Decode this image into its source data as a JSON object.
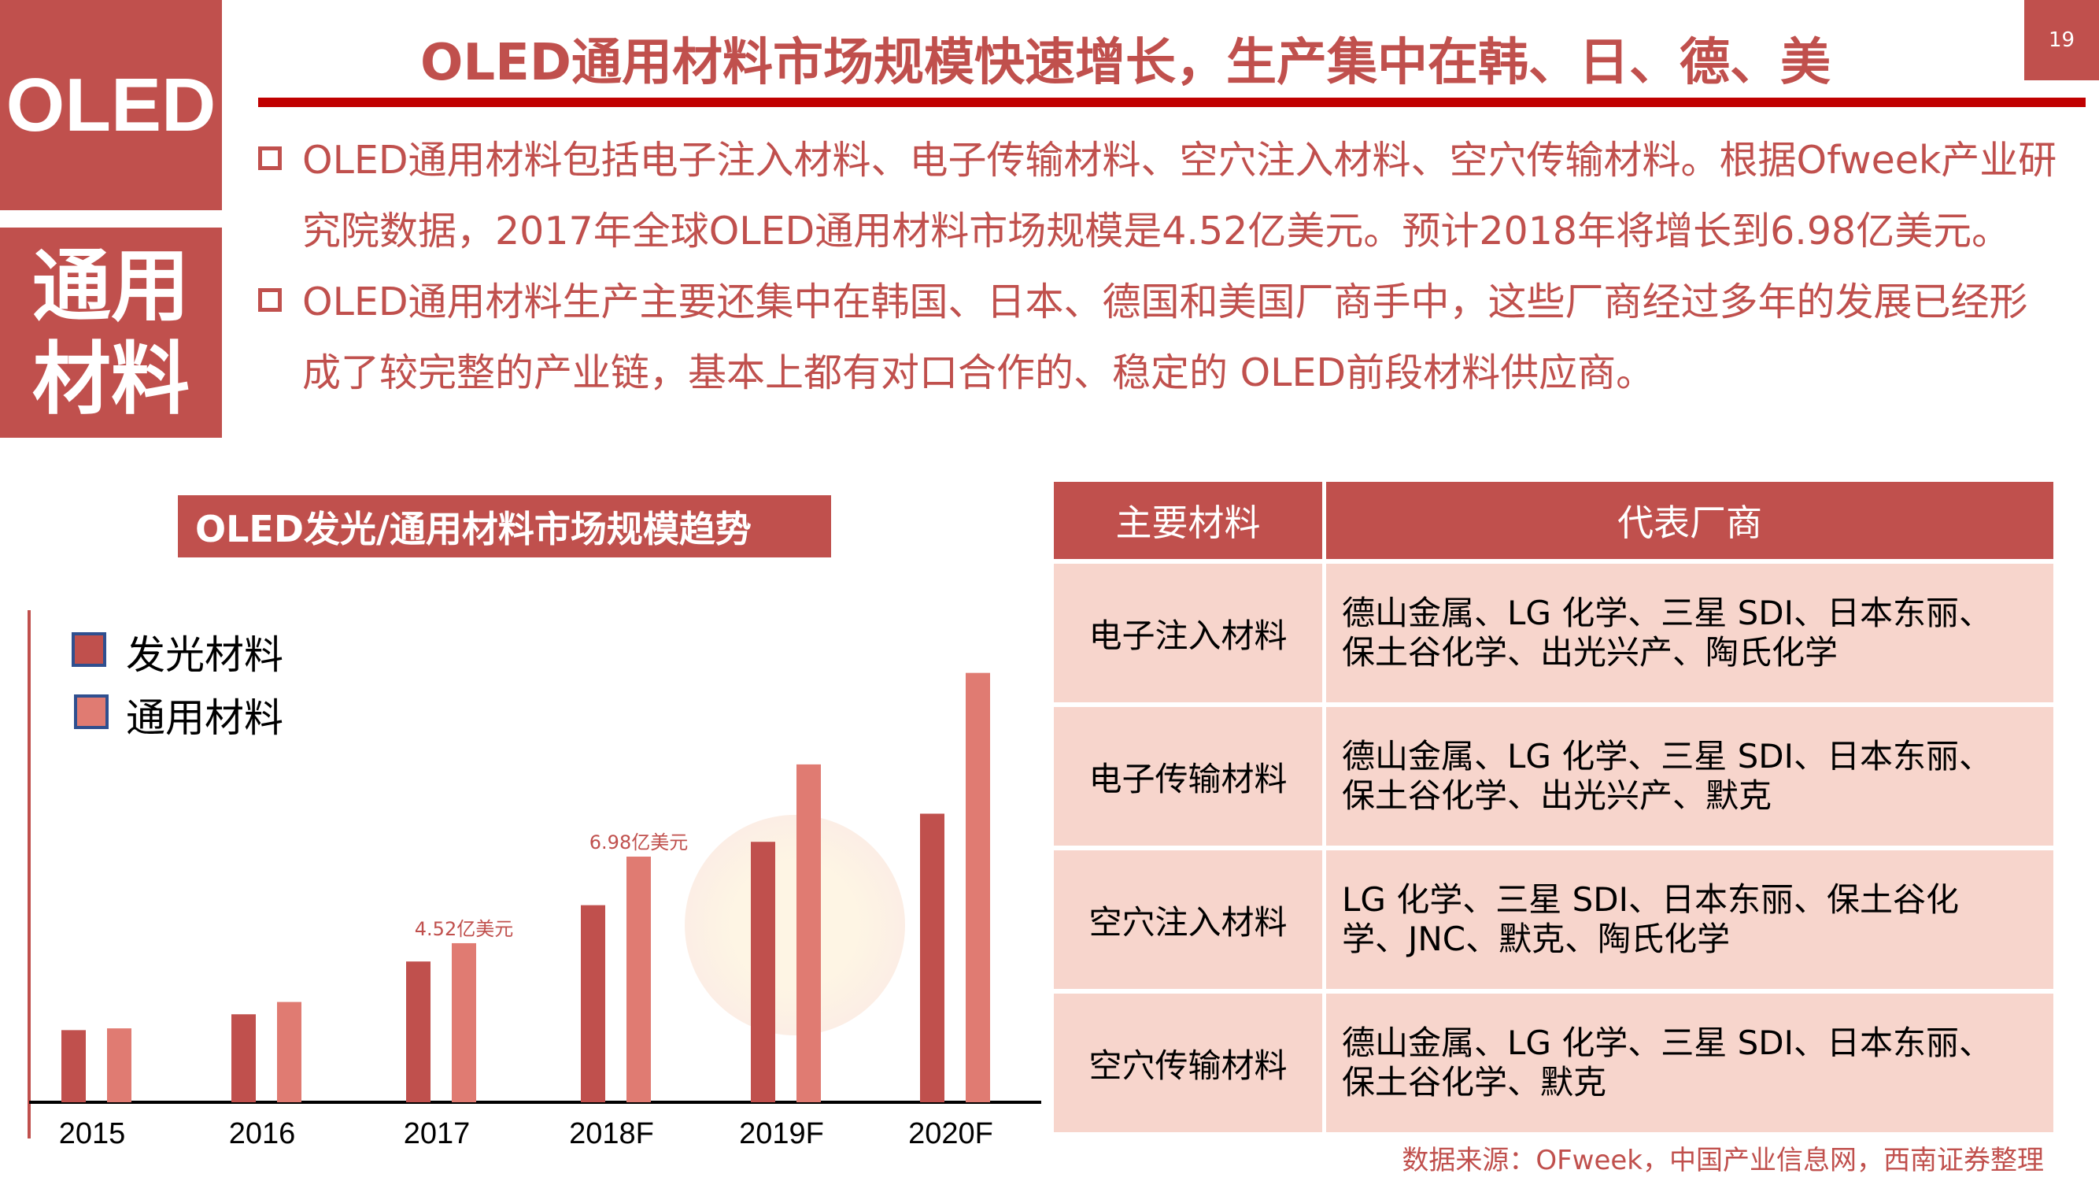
{
  "sidebar": {
    "label": "OLED",
    "topic": "通用材料"
  },
  "header": {
    "title": "OLED通用材料市场规模快速增长，生产集中在韩、日、德、美",
    "page_number": "19"
  },
  "bullets": [
    "OLED通用材料包括电子注入材料、电子传输材料、空穴注入材料、空穴传输材料。根据Ofweek产业研究院数据，2017年全球OLED通用材料市场规模是4.52亿美元。预计2018年将增长到6.98亿美元。",
    "OLED通用材料生产主要还集中在韩国、日本、德国和美国厂商手中，这些厂商经过多年的发展已经形成了较完整的产业链，基本上都有对口合作的、稳定的 OLED前段材料供应商。"
  ],
  "chart_data": {
    "type": "bar",
    "title": "OLED发光/通用材料市场规模趋势",
    "categories": [
      "2015",
      "2016",
      "2017",
      "2018F",
      "2019F",
      "2020F"
    ],
    "series": [
      {
        "name": "发光材料",
        "color": "#c0504d",
        "values": [
          2.05,
          2.5,
          4.0,
          5.6,
          7.4,
          8.2
        ]
      },
      {
        "name": "通用材料",
        "color": "#e07b72",
        "values": [
          2.1,
          2.85,
          4.52,
          6.98,
          9.6,
          12.2
        ]
      }
    ],
    "annotations": [
      {
        "category": "2017",
        "series": "通用材料",
        "text": "4.52亿美元"
      },
      {
        "category": "2018F",
        "series": "通用材料",
        "text": "6.98亿美元"
      }
    ],
    "legend": "top-left",
    "grid": false
  },
  "table": {
    "headers": [
      "主要材料",
      "代表厂商"
    ],
    "rows": [
      [
        "电子注入材料",
        "德山金属、LG 化学、三星 SDI、日本东丽、保土谷化学、出光兴产、陶氏化学"
      ],
      [
        "电子传输材料",
        "德山金属、LG 化学、三星 SDI、日本东丽、保土谷化学、出光兴产、默克"
      ],
      [
        "空穴注入材料",
        "LG 化学、三星 SDI、日本东丽、保土谷化学、JNC、默克、陶氏化学"
      ],
      [
        "空穴传输材料",
        "德山金属、LG 化学、三星 SDI、日本东丽、保土谷化学、默克"
      ]
    ]
  },
  "source": "数据来源：OFweek，中国产业信息网，西南证券整理"
}
